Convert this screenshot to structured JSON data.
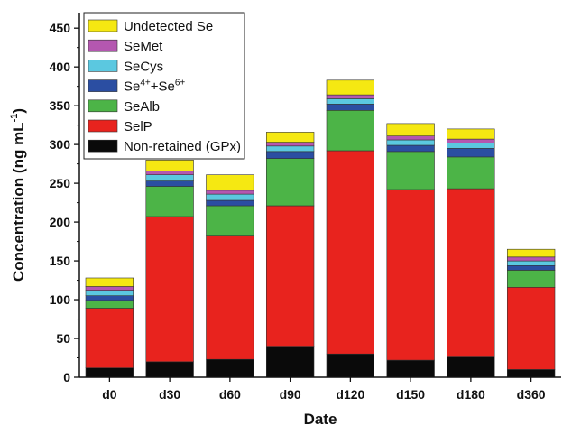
{
  "chart_data": {
    "type": "bar",
    "stacked": true,
    "xlabel": "Date",
    "ylabel": "Concentration (ng mL",
    "ylabel_sup": "-1",
    "ylabel_close": ")",
    "ylim": [
      0,
      470
    ],
    "yticks": [
      0,
      50,
      100,
      150,
      200,
      250,
      300,
      350,
      400,
      450
    ],
    "categories": [
      "d0",
      "d30",
      "d60",
      "d90",
      "d120",
      "d150",
      "d180",
      "d360"
    ],
    "legend_position": "top-left",
    "series": [
      {
        "name": "Non-retained (GPx)",
        "color": "#0a0a0a",
        "values": [
          12,
          20,
          23,
          40,
          30,
          22,
          26,
          10
        ]
      },
      {
        "name": "SelP",
        "color": "#e8231e",
        "values": [
          77,
          187,
          160,
          181,
          262,
          220,
          217,
          106
        ]
      },
      {
        "name": "SeAlb",
        "color": "#4cb447",
        "values": [
          10,
          39,
          38,
          61,
          52,
          49,
          41,
          22
        ]
      },
      {
        "name_parts": [
          "Se",
          "4+",
          "+Se",
          "6+"
        ],
        "color": "#2b4ea2",
        "values": [
          6,
          7,
          7,
          9,
          8,
          8,
          11,
          6
        ]
      },
      {
        "name": "SeCys",
        "color": "#5bc8e0",
        "values": [
          7,
          8,
          8,
          7,
          7,
          7,
          7,
          6
        ]
      },
      {
        "name": "SeMet",
        "color": "#b457b0",
        "values": [
          5,
          5,
          5,
          5,
          5,
          5,
          5,
          5
        ]
      },
      {
        "name": "Undetected Se",
        "color": "#f5e812",
        "values": [
          11,
          14,
          20,
          13,
          19,
          16,
          13,
          10
        ]
      }
    ]
  }
}
